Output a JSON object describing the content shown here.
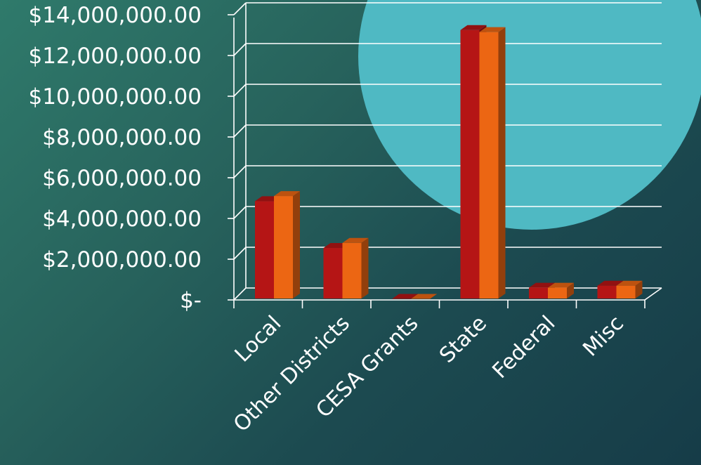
{
  "chart_data": {
    "type": "bar",
    "title": "",
    "xlabel": "",
    "ylabel": "",
    "categories": [
      "Local",
      "Other Districts",
      "CESA Grants",
      "State",
      "Federal",
      "Misc"
    ],
    "series": [
      {
        "color": "#b51515",
        "values": [
          4850000,
          2550000,
          50000,
          13250000,
          600000,
          700000
        ]
      },
      {
        "color": "#ec6613",
        "values": [
          5100000,
          2800000,
          50000,
          13150000,
          600000,
          700000
        ]
      }
    ],
    "ylim": [
      0,
      14000000
    ],
    "yticks": [
      0,
      2000000,
      4000000,
      6000000,
      8000000,
      10000000,
      12000000,
      14000000
    ],
    "ytick_labels": [
      "$-",
      "$2,000,000.00",
      "$4,000,000.00",
      "$6,000,000.00",
      "$8,000,000.00",
      "$10,000,000.00",
      "$12,000,000.00",
      "$14,000,000.00"
    ],
    "grid": true,
    "legend": "none",
    "style": "3d-clustered-column"
  },
  "decor": {
    "circle_color": "#4fb9c3",
    "gridline_color": "#ffffff"
  }
}
